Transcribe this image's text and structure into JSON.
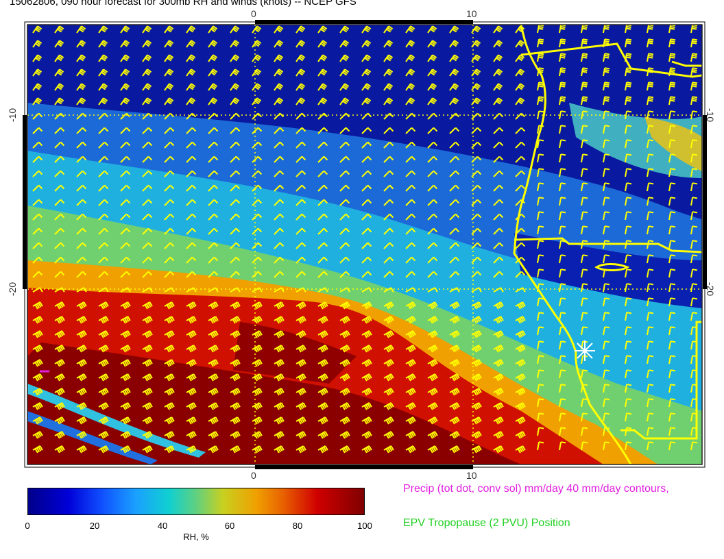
{
  "title": "15062806, 090 hour forecast for 300mb RH and winds (knots) -- NCEP GFS",
  "axes": {
    "lon_top": [
      "0",
      "10"
    ],
    "lon_bottom": [
      "0",
      "10"
    ],
    "lat_left": [
      "-10",
      "-20"
    ],
    "lat_right": [
      "-10",
      "-20"
    ]
  },
  "colorbar": {
    "ticks": [
      "0",
      "20",
      "40",
      "60",
      "80",
      "100"
    ],
    "unit": "RH, %",
    "colors": [
      "#00008a",
      "#0000d8",
      "#1050ff",
      "#1aa0ff",
      "#10d0d0",
      "#60d080",
      "#c8d020",
      "#f0a000",
      "#e86000",
      "#d00000",
      "#800000"
    ]
  },
  "legend": {
    "precip": "Precip (tot dot, conv sol) mm/day 40 mm/day contours,",
    "epv": "EPV Tropopause (2 PVU) Position"
  },
  "colors": {
    "wind_barb": "#ffff00",
    "coastline": "#ffff00",
    "grid": "#ffff00",
    "precip": "#e020e0",
    "epv": "#20d020",
    "station_marker": "#ffffff"
  },
  "icons": {
    "station_marker": "asterisk-icon"
  }
}
